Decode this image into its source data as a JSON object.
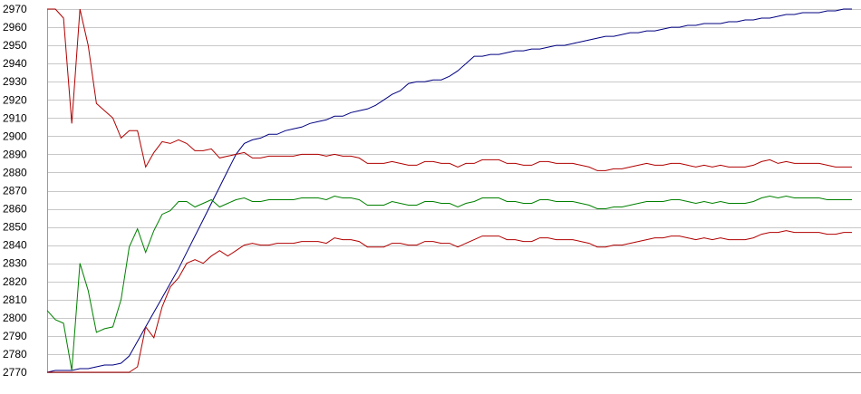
{
  "chart_data": {
    "type": "line",
    "title": "",
    "xlabel": "",
    "ylabel": "",
    "ylim": [
      2770,
      2970
    ],
    "yticks": [
      2770,
      2780,
      2790,
      2800,
      2810,
      2820,
      2830,
      2840,
      2850,
      2860,
      2870,
      2880,
      2890,
      2900,
      2910,
      2920,
      2930,
      2940,
      2950,
      2960,
      2970
    ],
    "grid": "horizontal",
    "legend": "none",
    "x": [
      0,
      1,
      2,
      3,
      4,
      5,
      6,
      7,
      8,
      9,
      10,
      11,
      12,
      13,
      14,
      15,
      16,
      17,
      18,
      19,
      20,
      21,
      22,
      23,
      24,
      25,
      26,
      27,
      28,
      29,
      30,
      31,
      32,
      33,
      34,
      35,
      36,
      37,
      38,
      39,
      40,
      41,
      42,
      43,
      44,
      45,
      46,
      47,
      48,
      49,
      50,
      51,
      52,
      53,
      54,
      55,
      56,
      57,
      58,
      59,
      60,
      61,
      62,
      63,
      64,
      65,
      66,
      67,
      68,
      69,
      70,
      71,
      72,
      73,
      74,
      75,
      76,
      77,
      78,
      79,
      80,
      81,
      82,
      83,
      84,
      85,
      86,
      87,
      88,
      89,
      90,
      91,
      92,
      93,
      94,
      95,
      96,
      97,
      98
    ],
    "series": [
      {
        "color": "#000080",
        "values": [
          2770,
          2771,
          2771,
          2771,
          2772,
          2772,
          2773,
          2774,
          2774,
          2775,
          2779,
          2787,
          2795,
          2803,
          2811,
          2819,
          2827,
          2836,
          2845,
          2854,
          2863,
          2872,
          2881,
          2890,
          2896,
          2898,
          2899,
          2901,
          2901,
          2903,
          2904,
          2905,
          2907,
          2908,
          2909,
          2911,
          2911,
          2913,
          2914,
          2915,
          2917,
          2920,
          2923,
          2925,
          2929,
          2930,
          2930,
          2931,
          2931,
          2933,
          2936,
          2940,
          2944,
          2944,
          2945,
          2945,
          2946,
          2947,
          2947,
          2948,
          2948,
          2949,
          2950,
          2950,
          2951,
          2952,
          2953,
          2954,
          2955,
          2955,
          2956,
          2957,
          2957,
          2958,
          2958,
          2959,
          2960,
          2960,
          2961,
          2961,
          2962,
          2962,
          2962,
          2963,
          2963,
          2964,
          2964,
          2965,
          2965,
          2966,
          2967,
          2967,
          2968,
          2968,
          2968,
          2969,
          2969,
          2970,
          2970
        ]
      },
      {
        "color": "#b00000",
        "values": [
          2970,
          2970,
          2965,
          2907,
          2970,
          2950,
          2918,
          2914,
          2910,
          2899,
          2903,
          2903,
          2883,
          2891,
          2897,
          2896,
          2898,
          2896,
          2892,
          2892,
          2893,
          2888,
          2889,
          2890,
          2891,
          2888,
          2888,
          2889,
          2889,
          2889,
          2889,
          2890,
          2890,
          2890,
          2889,
          2890,
          2889,
          2889,
          2888,
          2885,
          2885,
          2885,
          2886,
          2885,
          2884,
          2884,
          2886,
          2886,
          2885,
          2885,
          2883,
          2885,
          2885,
          2887,
          2887,
          2887,
          2885,
          2885,
          2884,
          2884,
          2886,
          2886,
          2885,
          2885,
          2885,
          2884,
          2883,
          2881,
          2881,
          2882,
          2882,
          2883,
          2884,
          2885,
          2884,
          2884,
          2885,
          2885,
          2884,
          2883,
          2884,
          2883,
          2884,
          2883,
          2883,
          2883,
          2884,
          2886,
          2887,
          2885,
          2886,
          2885,
          2885,
          2885,
          2885,
          2884,
          2883,
          2883,
          2883
        ]
      },
      {
        "color": "#008000",
        "values": [
          2804,
          2799,
          2797,
          2771,
          2830,
          2815,
          2792,
          2794,
          2795,
          2810,
          2839,
          2849,
          2836,
          2848,
          2857,
          2859,
          2864,
          2864,
          2861,
          2863,
          2865,
          2861,
          2863,
          2865,
          2866,
          2864,
          2864,
          2865,
          2865,
          2865,
          2865,
          2866,
          2866,
          2866,
          2865,
          2867,
          2866,
          2866,
          2865,
          2862,
          2862,
          2862,
          2864,
          2863,
          2862,
          2862,
          2864,
          2864,
          2863,
          2863,
          2861,
          2863,
          2864,
          2866,
          2866,
          2866,
          2864,
          2864,
          2863,
          2863,
          2865,
          2865,
          2864,
          2864,
          2864,
          2863,
          2862,
          2860,
          2860,
          2861,
          2861,
          2862,
          2863,
          2864,
          2864,
          2864,
          2865,
          2865,
          2864,
          2863,
          2864,
          2863,
          2864,
          2863,
          2863,
          2863,
          2864,
          2866,
          2867,
          2866,
          2867,
          2866,
          2866,
          2866,
          2866,
          2865,
          2865,
          2865,
          2865
        ]
      },
      {
        "color": "#b00000",
        "values": [
          2770,
          2770,
          2770,
          2770,
          2770,
          2770,
          2770,
          2770,
          2770,
          2770,
          2770,
          2773,
          2795,
          2789,
          2806,
          2817,
          2822,
          2830,
          2832,
          2830,
          2834,
          2837,
          2834,
          2837,
          2840,
          2841,
          2840,
          2840,
          2841,
          2841,
          2841,
          2842,
          2842,
          2842,
          2841,
          2844,
          2843,
          2843,
          2842,
          2839,
          2839,
          2839,
          2841,
          2841,
          2840,
          2840,
          2842,
          2842,
          2841,
          2841,
          2839,
          2841,
          2843,
          2845,
          2845,
          2845,
          2843,
          2843,
          2842,
          2842,
          2844,
          2844,
          2843,
          2843,
          2843,
          2842,
          2841,
          2839,
          2839,
          2840,
          2840,
          2841,
          2842,
          2843,
          2844,
          2844,
          2845,
          2845,
          2844,
          2843,
          2844,
          2843,
          2844,
          2843,
          2843,
          2843,
          2844,
          2846,
          2847,
          2847,
          2848,
          2847,
          2847,
          2847,
          2847,
          2846,
          2846,
          2847,
          2847
        ]
      }
    ]
  }
}
